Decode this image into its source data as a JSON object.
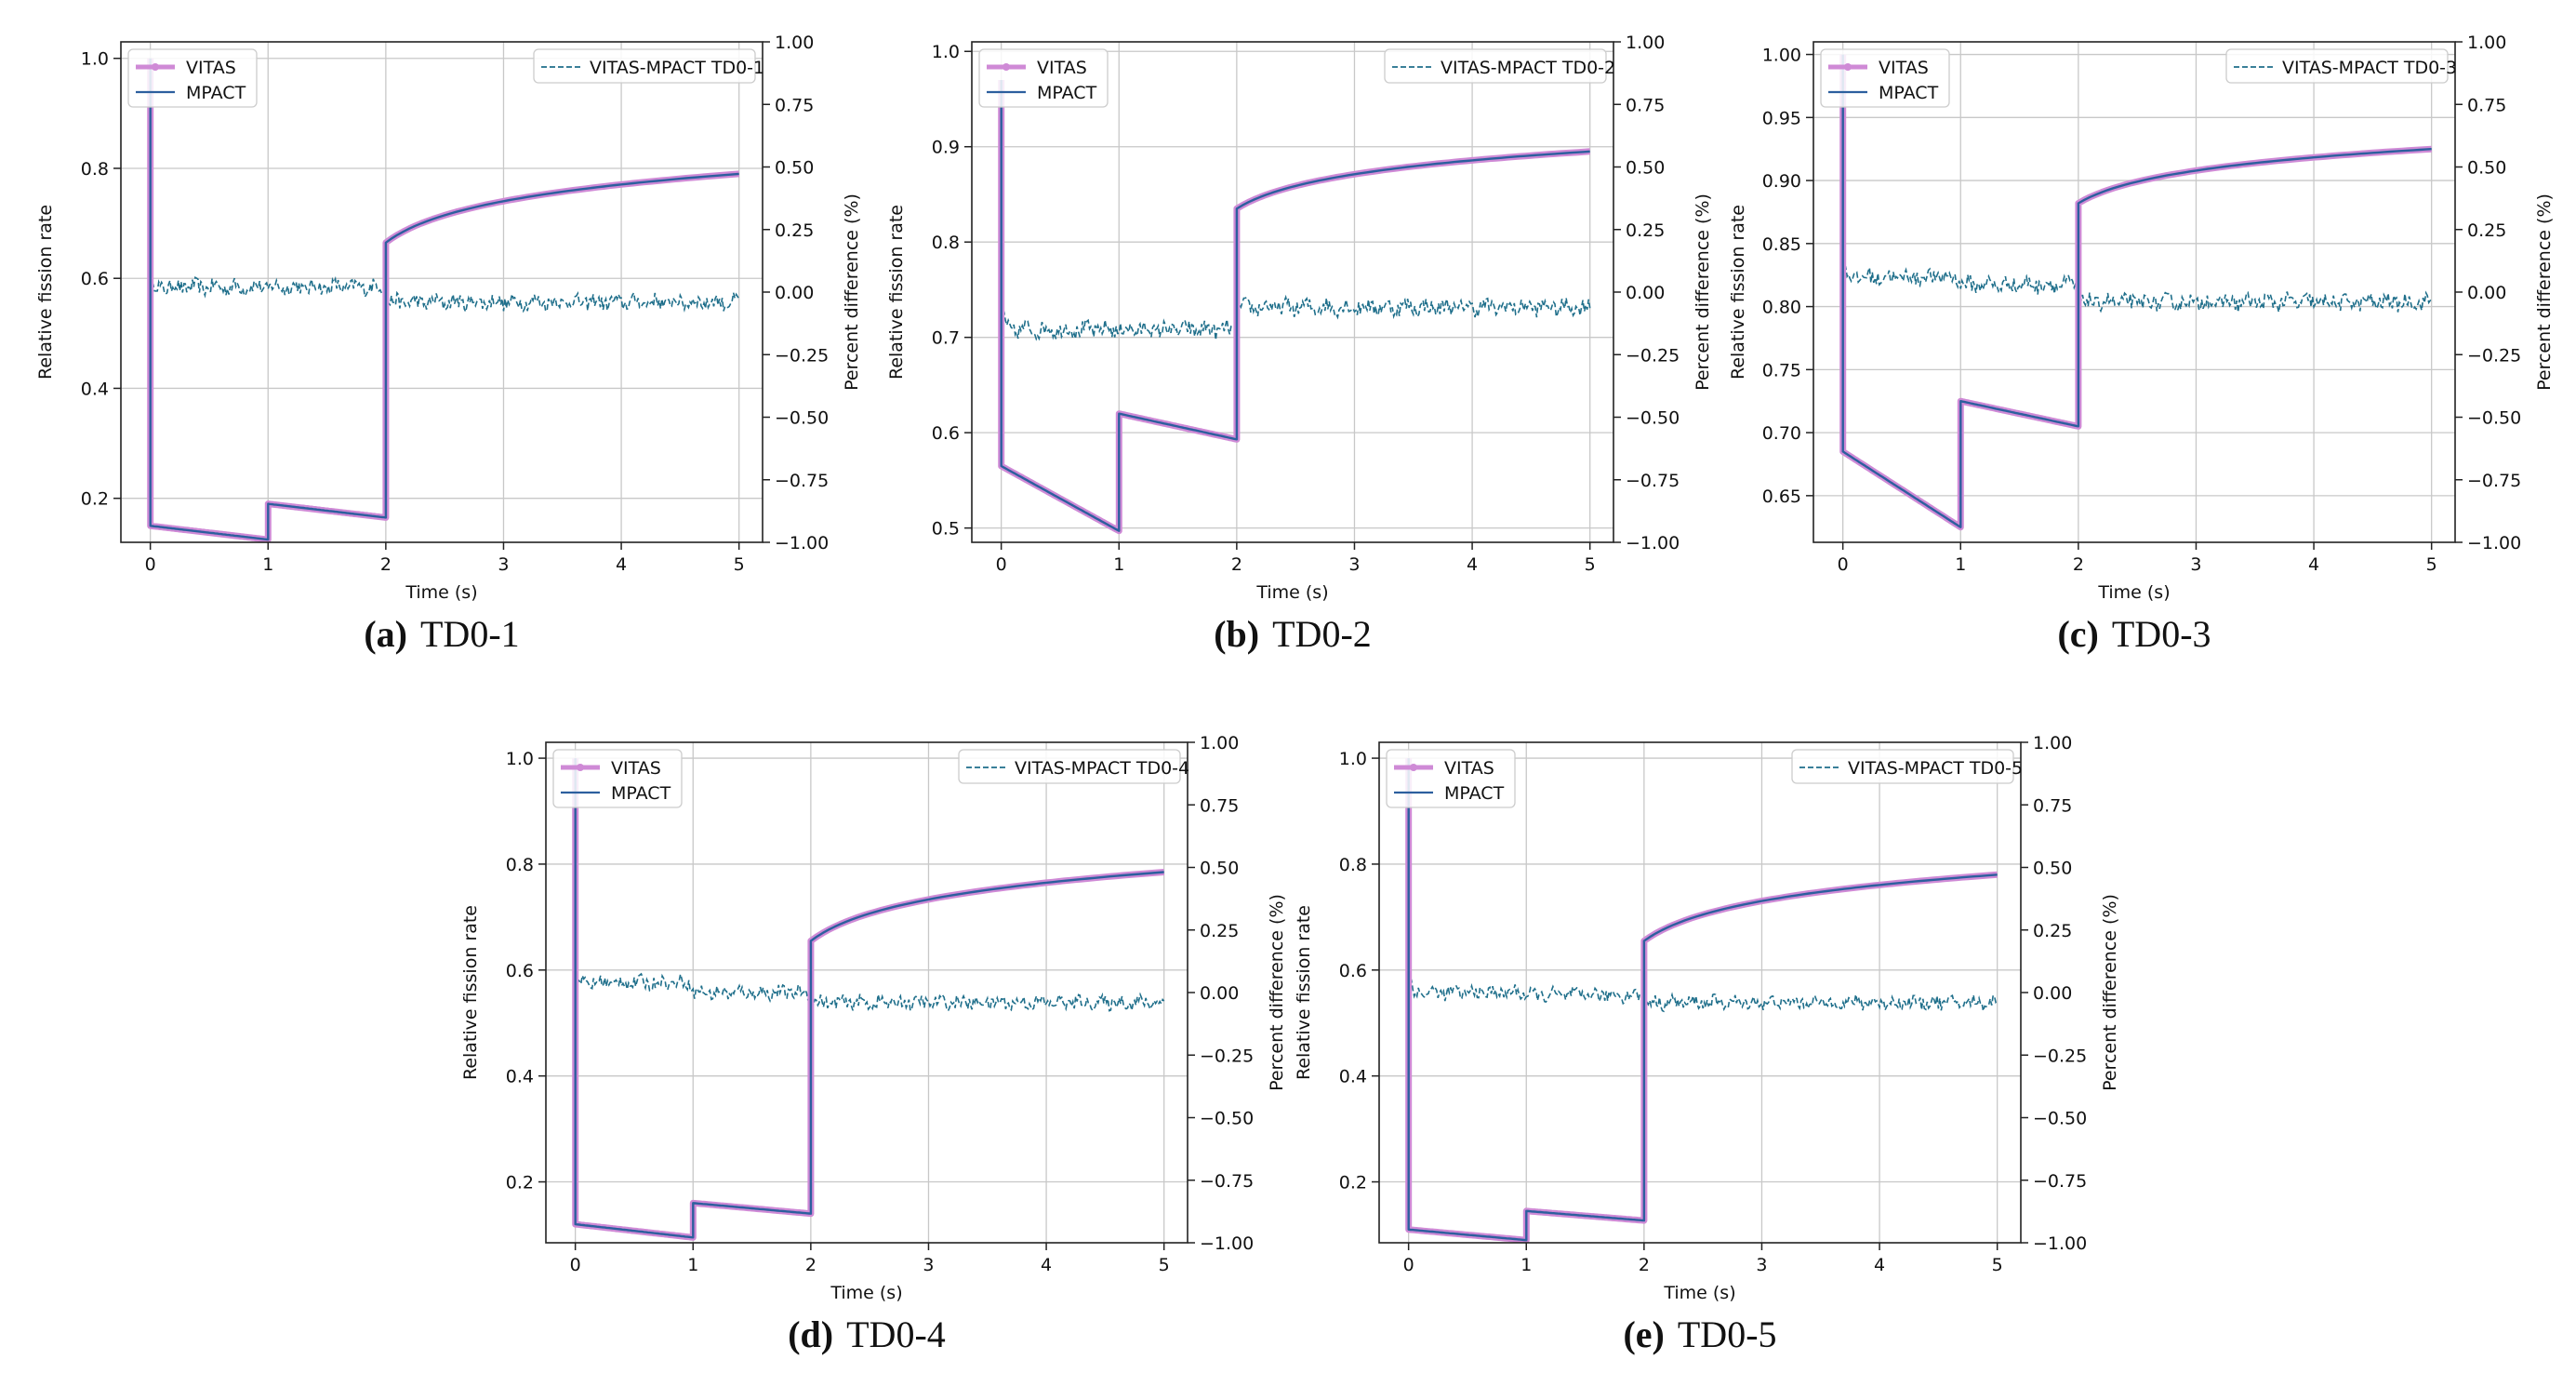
{
  "figure": {
    "description_labels": [
      "(a)",
      "(b)",
      "(c)",
      "(d)",
      "(e)"
    ]
  },
  "chart_data": [
    {
      "type": "line",
      "panel_letter": "(a)",
      "caption": "TD0-1",
      "xlabel": "Time (s)",
      "ylabel_left": "Relative fission rate",
      "ylabel_right": "Percent difference (%)",
      "xlim": [
        -0.25,
        5.2
      ],
      "ylim_left": [
        0.12,
        1.03
      ],
      "ylim_right": [
        -1.0,
        1.0
      ],
      "xticks": [
        0,
        1,
        2,
        3,
        4,
        5
      ],
      "xtick_labels": [
        "0",
        "1",
        "2",
        "3",
        "4",
        "5"
      ],
      "yticks_left": [
        0.2,
        0.4,
        0.6,
        0.8,
        1.0
      ],
      "ytick_labels_left": [
        "0.2",
        "0.4",
        "0.6",
        "0.8",
        "1.0"
      ],
      "yticks_right": [
        -1.0,
        -0.75,
        -0.5,
        -0.25,
        0.0,
        0.25,
        0.5,
        0.75,
        1.0
      ],
      "ytick_labels_right": [
        "−1.00",
        "−0.75",
        "−0.50",
        "−0.25",
        "0.00",
        "0.25",
        "0.50",
        "0.75",
        "1.00"
      ],
      "grid": true,
      "legend_left": [
        "VITAS",
        "MPACT"
      ],
      "legend_right": "VITAS-MPACT TD0-1",
      "legend_positions": [
        "top-left",
        "top-right"
      ],
      "segments": [
        {
          "t0": 0.0,
          "t1": 1.0,
          "v0": 0.15,
          "v1": 0.125,
          "shape": "linear"
        },
        {
          "t0": 1.0,
          "t1": 2.0,
          "v0": 0.19,
          "v1": 0.165,
          "shape": "linear"
        },
        {
          "t0": 2.0,
          "t1": 5.0,
          "v0": 0.665,
          "v1": 0.79,
          "shape": "log"
        }
      ],
      "initial_value": 1.0,
      "difference_series": {
        "noise": 0.028,
        "offsets": [
          0.02,
          0.02,
          -0.04
        ],
        "peak": 0.03
      }
    },
    {
      "type": "line",
      "panel_letter": "(b)",
      "caption": "TD0-2",
      "xlabel": "Time (s)",
      "ylabel_left": "Relative fission rate",
      "ylabel_right": "Percent difference (%)",
      "xlim": [
        -0.25,
        5.2
      ],
      "ylim_left": [
        0.485,
        1.01
      ],
      "ylim_right": [
        -1.0,
        1.0
      ],
      "xticks": [
        0,
        1,
        2,
        3,
        4,
        5
      ],
      "xtick_labels": [
        "0",
        "1",
        "2",
        "3",
        "4",
        "5"
      ],
      "yticks_left": [
        0.5,
        0.6,
        0.7,
        0.8,
        0.9,
        1.0
      ],
      "ytick_labels_left": [
        "0.5",
        "0.6",
        "0.7",
        "0.8",
        "0.9",
        "1.0"
      ],
      "yticks_right": [
        -1.0,
        -0.75,
        -0.5,
        -0.25,
        0.0,
        0.25,
        0.5,
        0.75,
        1.0
      ],
      "ytick_labels_right": [
        "−1.00",
        "−0.75",
        "−0.50",
        "−0.25",
        "0.00",
        "0.25",
        "0.50",
        "0.75",
        "1.00"
      ],
      "grid": true,
      "legend_left": [
        "VITAS",
        "MPACT"
      ],
      "legend_right": "VITAS-MPACT TD0-2",
      "legend_positions": [
        "top-left",
        "top-right"
      ],
      "segments": [
        {
          "t0": 0.0,
          "t1": 1.0,
          "v0": 0.565,
          "v1": 0.497,
          "shape": "linear"
        },
        {
          "t0": 1.0,
          "t1": 2.0,
          "v0": 0.62,
          "v1": 0.593,
          "shape": "linear"
        },
        {
          "t0": 2.0,
          "t1": 5.0,
          "v0": 0.835,
          "v1": 0.895,
          "shape": "log"
        }
      ],
      "initial_value": 0.97,
      "difference_series": {
        "noise": 0.03,
        "offsets": [
          -0.15,
          -0.15,
          -0.06
        ],
        "peak": -0.08
      }
    },
    {
      "type": "line",
      "panel_letter": "(c)",
      "caption": "TD0-3",
      "xlabel": "Time (s)",
      "ylabel_left": "Relative fission rate",
      "ylabel_right": "Percent difference (%)",
      "xlim": [
        -0.25,
        5.2
      ],
      "ylim_left": [
        0.613,
        1.01
      ],
      "ylim_right": [
        -1.0,
        1.0
      ],
      "xticks": [
        0,
        1,
        2,
        3,
        4,
        5
      ],
      "xtick_labels": [
        "0",
        "1",
        "2",
        "3",
        "4",
        "5"
      ],
      "yticks_left": [
        0.65,
        0.7,
        0.75,
        0.8,
        0.85,
        0.9,
        0.95,
        1.0
      ],
      "ytick_labels_left": [
        "0.65",
        "0.70",
        "0.75",
        "0.80",
        "0.85",
        "0.90",
        "0.95",
        "1.00"
      ],
      "yticks_right": [
        -1.0,
        -0.75,
        -0.5,
        -0.25,
        0.0,
        0.25,
        0.5,
        0.75,
        1.0
      ],
      "ytick_labels_right": [
        "−1.00",
        "−0.75",
        "−0.50",
        "−0.25",
        "0.00",
        "0.25",
        "0.50",
        "0.75",
        "1.00"
      ],
      "grid": true,
      "legend_left": [
        "VITAS",
        "MPACT"
      ],
      "legend_right": "VITAS-MPACT TD0-3",
      "legend_positions": [
        "top-left",
        "top-right"
      ],
      "segments": [
        {
          "t0": 0.0,
          "t1": 1.0,
          "v0": 0.685,
          "v1": 0.625,
          "shape": "linear"
        },
        {
          "t0": 1.0,
          "t1": 2.0,
          "v0": 0.725,
          "v1": 0.705,
          "shape": "linear"
        },
        {
          "t0": 2.0,
          "t1": 5.0,
          "v0": 0.882,
          "v1": 0.925,
          "shape": "log"
        }
      ],
      "initial_value": 1.0,
      "difference_series": {
        "noise": 0.03,
        "offsets": [
          0.06,
          0.03,
          -0.04
        ],
        "peak": 0.1
      }
    },
    {
      "type": "line",
      "panel_letter": "(d)",
      "caption": "TD0-4",
      "xlabel": "Time (s)",
      "ylabel_left": "Relative fission rate",
      "ylabel_right": "Percent difference (%)",
      "xlim": [
        -0.25,
        5.2
      ],
      "ylim_left": [
        0.085,
        1.03
      ],
      "ylim_right": [
        -1.0,
        1.0
      ],
      "xticks": [
        0,
        1,
        2,
        3,
        4,
        5
      ],
      "xtick_labels": [
        "0",
        "1",
        "2",
        "3",
        "4",
        "5"
      ],
      "yticks_left": [
        0.2,
        0.4,
        0.6,
        0.8,
        1.0
      ],
      "ytick_labels_left": [
        "0.2",
        "0.4",
        "0.6",
        "0.8",
        "1.0"
      ],
      "yticks_right": [
        -1.0,
        -0.75,
        -0.5,
        -0.25,
        0.0,
        0.25,
        0.5,
        0.75,
        1.0
      ],
      "ytick_labels_right": [
        "−1.00",
        "−0.75",
        "−0.50",
        "−0.25",
        "0.00",
        "0.25",
        "0.50",
        "0.75",
        "1.00"
      ],
      "grid": true,
      "legend_left": [
        "VITAS",
        "MPACT"
      ],
      "legend_right": "VITAS-MPACT TD0-4",
      "legend_positions": [
        "top-left",
        "top-right"
      ],
      "segments": [
        {
          "t0": 0.0,
          "t1": 1.0,
          "v0": 0.12,
          "v1": 0.095,
          "shape": "linear"
        },
        {
          "t0": 1.0,
          "t1": 2.0,
          "v0": 0.16,
          "v1": 0.14,
          "shape": "linear"
        },
        {
          "t0": 2.0,
          "t1": 5.0,
          "v0": 0.655,
          "v1": 0.785,
          "shape": "log"
        }
      ],
      "initial_value": 1.0,
      "difference_series": {
        "noise": 0.025,
        "offsets": [
          0.04,
          0.0,
          -0.04
        ],
        "peak": 0.05
      }
    },
    {
      "type": "line",
      "panel_letter": "(e)",
      "caption": "TD0-5",
      "xlabel": "Time (s)",
      "ylabel_left": "Relative fission rate",
      "ylabel_right": "Percent difference (%)",
      "xlim": [
        -0.25,
        5.2
      ],
      "ylim_left": [
        0.085,
        1.03
      ],
      "ylim_right": [
        -1.0,
        1.0
      ],
      "xticks": [
        0,
        1,
        2,
        3,
        4,
        5
      ],
      "xtick_labels": [
        "0",
        "1",
        "2",
        "3",
        "4",
        "5"
      ],
      "yticks_left": [
        0.2,
        0.4,
        0.6,
        0.8,
        1.0
      ],
      "ytick_labels_left": [
        "0.2",
        "0.4",
        "0.6",
        "0.8",
        "1.0"
      ],
      "yticks_right": [
        -1.0,
        -0.75,
        -0.5,
        -0.25,
        0.0,
        0.25,
        0.5,
        0.75,
        1.0
      ],
      "ytick_labels_right": [
        "−1.00",
        "−0.75",
        "−0.50",
        "−0.25",
        "0.00",
        "0.25",
        "0.50",
        "0.75",
        "1.00"
      ],
      "grid": true,
      "legend_left": [
        "VITAS",
        "MPACT"
      ],
      "legend_right": "VITAS-MPACT TD0-5",
      "legend_positions": [
        "top-left",
        "top-right"
      ],
      "segments": [
        {
          "t0": 0.0,
          "t1": 1.0,
          "v0": 0.11,
          "v1": 0.09,
          "shape": "linear"
        },
        {
          "t0": 1.0,
          "t1": 2.0,
          "v0": 0.145,
          "v1": 0.127,
          "shape": "linear"
        },
        {
          "t0": 2.0,
          "t1": 5.0,
          "v0": 0.655,
          "v1": 0.78,
          "shape": "log"
        }
      ],
      "initial_value": 1.0,
      "difference_series": {
        "noise": 0.025,
        "offsets": [
          0.0,
          -0.01,
          -0.04
        ],
        "peak": 0.05
      }
    }
  ],
  "colors": {
    "vitas": "#cf8ad6",
    "mpact": "#2c5f9e",
    "diff": "#1f6f8b",
    "grid": "#c8c8c8",
    "axis": "#222222"
  }
}
